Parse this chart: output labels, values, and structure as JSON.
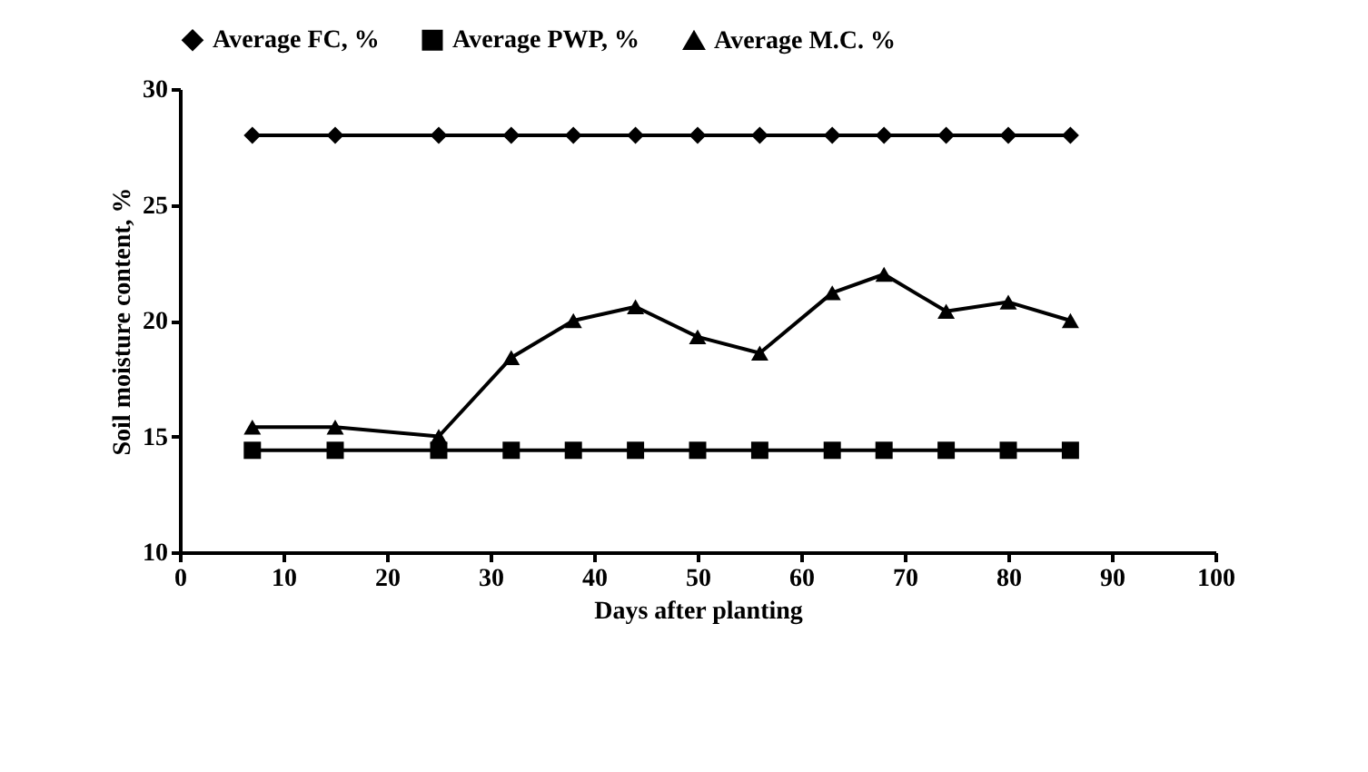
{
  "chart_data": {
    "type": "line",
    "xlabel": "Days after planting",
    "ylabel": "Soil moisture content, %",
    "x": [
      7,
      15,
      25,
      32,
      38,
      44,
      50,
      56,
      63,
      68,
      74,
      80,
      86
    ],
    "series": [
      {
        "name": "Average FC, %",
        "color": "#000000",
        "marker": "diamond",
        "values": [
          28,
          28,
          28,
          28,
          28,
          28,
          28,
          28,
          28,
          28,
          28,
          28,
          28
        ]
      },
      {
        "name": "Average PWP, %",
        "color": "#000000",
        "marker": "square",
        "values": [
          14.4,
          14.4,
          14.4,
          14.4,
          14.4,
          14.4,
          14.4,
          14.4,
          14.4,
          14.4,
          14.4,
          14.4,
          14.4
        ]
      },
      {
        "name": "Average M.C. %",
        "color": "#000000",
        "marker": "triangle",
        "values": [
          15.4,
          15.4,
          15.0,
          18.4,
          20.0,
          20.6,
          19.3,
          18.6,
          21.2,
          22.0,
          20.4,
          20.8,
          20.0
        ]
      }
    ],
    "xlim": [
      0,
      100
    ],
    "xticks": [
      0,
      10,
      20,
      30,
      40,
      50,
      60,
      70,
      80,
      90,
      100
    ],
    "ylim": [
      10,
      30
    ],
    "yticks": [
      10,
      15,
      20,
      25,
      30
    ],
    "grid": false,
    "legend": "top",
    "line_style": "solid"
  }
}
